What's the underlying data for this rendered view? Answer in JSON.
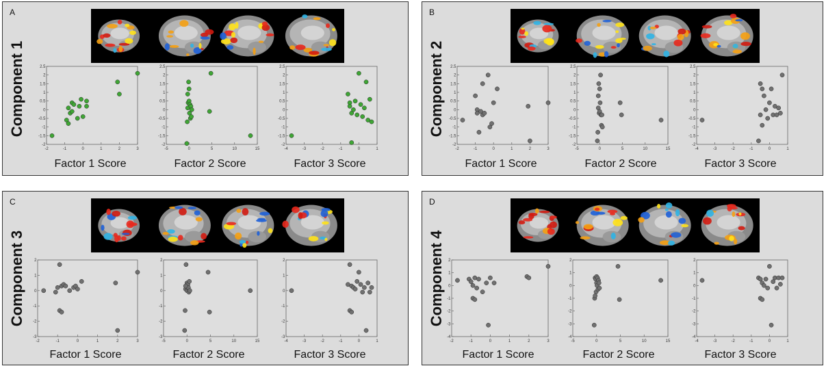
{
  "colors": {
    "panel_bg": "#dcdcdc",
    "green_point": "#3fa535",
    "gray_point": "#707070",
    "strip_bg": "#000000"
  },
  "chart_data": [
    {
      "id": "A",
      "type": "scatter",
      "component_label": "Component 1",
      "point_color": "#3fa535",
      "subplots": [
        {
          "xlabel": "Factor 1 Score",
          "xlim": [
            -2,
            3
          ],
          "ylim": [
            -2,
            2.5
          ],
          "xticks": [
            "-2",
            "-1",
            "0",
            "1",
            "2",
            "3"
          ],
          "yticks": [
            "-2",
            "-1.5",
            "-1",
            "-0.5",
            "0",
            "0.5",
            "1",
            "1.5",
            "2",
            "2.5"
          ],
          "x": [
            -1.7,
            -0.9,
            -0.8,
            -0.8,
            -0.7,
            -0.6,
            -0.6,
            -0.5,
            -0.3,
            -0.2,
            -0.1,
            0.0,
            0.2,
            0.2,
            1.9,
            2.0,
            3.0
          ],
          "y": [
            -1.5,
            -0.6,
            -0.8,
            0.1,
            -0.2,
            0.4,
            -0.1,
            0.3,
            -0.5,
            0.2,
            0.6,
            -0.4,
            0.2,
            0.5,
            1.6,
            0.9,
            2.1
          ]
        },
        {
          "xlabel": "Factor 2 Score",
          "xlim": [
            -5,
            15
          ],
          "ylim": [
            -2,
            2.5
          ],
          "xticks": [
            "-5",
            "0",
            "5",
            "10",
            "15"
          ],
          "yticks": [
            "-2",
            "-1.5",
            "-1",
            "-0.5",
            "0",
            "0.5",
            "1",
            "1.5",
            "2",
            "2.5"
          ],
          "x": [
            -0.5,
            -0.4,
            -0.3,
            -0.2,
            -0.1,
            0.0,
            0.0,
            0.1,
            0.2,
            0.3,
            0.4,
            0.5,
            0.6,
            4.5,
            4.8,
            13.5,
            -0.3
          ],
          "y": [
            -1.95,
            -0.7,
            0.1,
            0.4,
            1.6,
            1.2,
            0.5,
            -0.2,
            0.3,
            -0.5,
            0.2,
            -0.4,
            0.0,
            -0.1,
            2.1,
            -1.5,
            0.9
          ]
        },
        {
          "xlabel": "Factor 3 Score",
          "xlim": [
            -4,
            1
          ],
          "ylim": [
            -2,
            2.5
          ],
          "xticks": [
            "-4",
            "-3",
            "-2",
            "-1",
            "0",
            "1"
          ],
          "yticks": [
            "-2",
            "-1.5",
            "-1",
            "-0.5",
            "0",
            "0.5",
            "1",
            "1.5",
            "2",
            "2.5"
          ],
          "x": [
            -3.7,
            -0.6,
            -0.5,
            -0.5,
            -0.4,
            -0.4,
            -0.3,
            -0.2,
            -0.1,
            0.0,
            0.1,
            0.2,
            0.3,
            0.4,
            0.5,
            0.6,
            0.7
          ],
          "y": [
            -1.5,
            0.9,
            0.4,
            0.2,
            -0.2,
            -1.9,
            0.0,
            0.5,
            -0.3,
            2.1,
            0.3,
            -0.4,
            0.1,
            1.6,
            -0.6,
            0.6,
            -0.7
          ]
        }
      ]
    },
    {
      "id": "B",
      "type": "scatter",
      "component_label": "Component 2",
      "point_color": "#707070",
      "subplots": [
        {
          "xlabel": "Factor 1 Score",
          "xlim": [
            -2,
            3
          ],
          "ylim": [
            -2,
            2.5
          ],
          "xticks": [
            "-2",
            "-1",
            "0",
            "1",
            "2",
            "3"
          ],
          "yticks": [
            "-2",
            "-1.5",
            "-1",
            "-0.5",
            "0",
            "0.5",
            "1",
            "1.5",
            "2",
            "2.5"
          ],
          "x": [
            -1.7,
            -0.9,
            -0.9,
            -0.8,
            -0.7,
            -0.6,
            -0.6,
            -0.5,
            -0.3,
            -0.2,
            -0.1,
            0.0,
            0.2,
            1.9,
            2.0,
            3.0,
            -1.0
          ],
          "y": [
            -0.6,
            0.0,
            -0.2,
            -1.3,
            -0.1,
            -0.3,
            1.5,
            -0.2,
            2.0,
            -1.0,
            -0.8,
            0.4,
            1.2,
            0.2,
            -1.8,
            0.4,
            0.8
          ]
        },
        {
          "xlabel": "Factor 2 Score",
          "xlim": [
            -5,
            15
          ],
          "ylim": [
            -2,
            2.5
          ],
          "xticks": [
            "-5",
            "0",
            "5",
            "10",
            "15"
          ],
          "yticks": [
            "-2",
            "-1.5",
            "-1",
            "-0.5",
            "0",
            "0.5",
            "1",
            "1.5",
            "2",
            "2.5"
          ],
          "x": [
            -0.5,
            -0.4,
            -0.3,
            -0.2,
            -0.1,
            0.0,
            0.0,
            0.1,
            0.2,
            0.3,
            0.4,
            0.5,
            0.6,
            4.5,
            4.8,
            13.5,
            -0.3
          ],
          "y": [
            -1.8,
            -1.3,
            0.1,
            1.5,
            -0.2,
            1.2,
            -0.1,
            0.4,
            2.0,
            -0.3,
            -0.9,
            -0.3,
            -1.0,
            0.4,
            -0.3,
            -0.6,
            0.8
          ]
        },
        {
          "xlabel": "Factor 3 Score",
          "xlim": [
            -4,
            1
          ],
          "ylim": [
            -2,
            2.5
          ],
          "xticks": [
            "-4",
            "-3",
            "-2",
            "-1",
            "0",
            "1"
          ],
          "yticks": [
            "-2",
            "-1.5",
            "-1",
            "-0.5",
            "0",
            "0.5",
            "1",
            "1.5",
            "2",
            "2.5"
          ],
          "x": [
            -3.7,
            -0.6,
            -0.5,
            -0.5,
            -0.4,
            -0.4,
            -0.3,
            -0.2,
            -0.1,
            0.0,
            0.1,
            0.2,
            0.3,
            0.4,
            0.5,
            0.6,
            0.7
          ],
          "y": [
            -0.6,
            -1.8,
            1.5,
            -0.3,
            1.2,
            -0.9,
            0.8,
            0.0,
            -0.5,
            0.4,
            1.2,
            -0.3,
            0.2,
            -0.3,
            0.1,
            -0.2,
            2.0
          ]
        }
      ]
    },
    {
      "id": "C",
      "type": "scatter",
      "component_label": "Component 3",
      "point_color": "#707070",
      "subplots": [
        {
          "xlabel": "Factor 1 Score",
          "xlim": [
            -2,
            3
          ],
          "ylim": [
            -3,
            2
          ],
          "xticks": [
            "-2",
            "-1",
            "0",
            "1",
            "2",
            "3"
          ],
          "yticks": [
            "-3",
            "-2",
            "-1",
            "0",
            "1",
            "2"
          ],
          "x": [
            -1.7,
            -1.1,
            -1.0,
            -0.9,
            -0.9,
            -0.8,
            -0.8,
            -0.7,
            -0.6,
            -0.4,
            -0.2,
            -0.1,
            0.0,
            0.2,
            1.9,
            2.0,
            3.0
          ],
          "y": [
            0.0,
            -0.1,
            0.2,
            -1.3,
            1.7,
            0.3,
            -1.4,
            0.4,
            0.3,
            0.0,
            0.2,
            0.3,
            0.1,
            0.6,
            0.5,
            -2.6,
            1.2
          ]
        },
        {
          "xlabel": "Factor 2 Score",
          "xlim": [
            -5,
            15
          ],
          "ylim": [
            -3,
            2
          ],
          "xticks": [
            "-5",
            "0",
            "5",
            "10",
            "15"
          ],
          "yticks": [
            "-3",
            "-2",
            "-1",
            "0",
            "1",
            "2"
          ],
          "x": [
            -0.5,
            -0.4,
            -0.3,
            -0.2,
            -0.1,
            0.0,
            0.0,
            0.1,
            0.2,
            0.3,
            0.4,
            0.5,
            0.6,
            4.5,
            4.8,
            13.5,
            -0.3
          ],
          "y": [
            -2.6,
            -1.3,
            0.1,
            1.7,
            0.3,
            0.0,
            0.5,
            0.2,
            0.4,
            0.2,
            -0.1,
            0.6,
            0.0,
            1.2,
            -1.4,
            0.0,
            0.3
          ]
        },
        {
          "xlabel": "Factor 3 Score",
          "xlim": [
            -4,
            1
          ],
          "ylim": [
            -3,
            2
          ],
          "xticks": [
            "-4",
            "-3",
            "-2",
            "-1",
            "0",
            "1"
          ],
          "yticks": [
            "-3",
            "-2",
            "-1",
            "0",
            "1",
            "2"
          ],
          "x": [
            -3.7,
            -0.6,
            -0.5,
            -0.5,
            -0.4,
            -0.4,
            -0.3,
            -0.2,
            -0.1,
            0.0,
            0.1,
            0.2,
            0.3,
            0.4,
            0.5,
            0.6,
            0.7
          ],
          "y": [
            0.0,
            0.4,
            1.7,
            -1.3,
            0.3,
            -1.4,
            0.2,
            0.1,
            0.6,
            1.2,
            0.4,
            -0.1,
            0.2,
            -2.6,
            0.5,
            -0.1,
            0.2
          ]
        }
      ]
    },
    {
      "id": "D",
      "type": "scatter",
      "component_label": "Component 4",
      "point_color": "#707070",
      "subplots": [
        {
          "xlabel": "Factor 1 Score",
          "xlim": [
            -2,
            3
          ],
          "ylim": [
            -4,
            2
          ],
          "xticks": [
            "-2",
            "-1",
            "0",
            "1",
            "2",
            "3"
          ],
          "yticks": [
            "-4",
            "-3",
            "-2",
            "-1",
            "0",
            "1",
            "2"
          ],
          "x": [
            -1.7,
            -1.1,
            -1.0,
            -0.9,
            -0.9,
            -0.8,
            -0.8,
            -0.7,
            -0.6,
            -0.4,
            -0.2,
            -0.1,
            0.0,
            0.2,
            1.9,
            2.0,
            3.0
          ],
          "y": [
            0.4,
            0.5,
            0.3,
            -1.0,
            0.0,
            0.6,
            -1.1,
            -0.2,
            0.5,
            -0.5,
            0.2,
            -3.1,
            0.6,
            0.2,
            0.7,
            0.6,
            1.5
          ]
        },
        {
          "xlabel": "Factor 2 Score",
          "xlim": [
            -5,
            15
          ],
          "ylim": [
            -4,
            2
          ],
          "xticks": [
            "-5",
            "0",
            "5",
            "10",
            "15"
          ],
          "yticks": [
            "-4",
            "-3",
            "-2",
            "-1",
            "0",
            "1",
            "2"
          ],
          "x": [
            -0.5,
            -0.4,
            -0.3,
            -0.2,
            -0.1,
            0.0,
            0.0,
            0.1,
            0.2,
            0.3,
            0.4,
            0.5,
            0.6,
            4.5,
            4.8,
            13.5,
            -0.3
          ],
          "y": [
            -3.1,
            -1.0,
            0.6,
            0.5,
            -0.5,
            0.7,
            0.2,
            0.0,
            0.6,
            -0.3,
            0.4,
            0.2,
            -0.2,
            1.5,
            -1.1,
            0.4,
            -0.8
          ]
        },
        {
          "xlabel": "Factor 3 Score",
          "xlim": [
            -4,
            1
          ],
          "ylim": [
            -4,
            2
          ],
          "xticks": [
            "-4",
            "-3",
            "-2",
            "-1",
            "0",
            "1"
          ],
          "yticks": [
            "-4",
            "-3",
            "-2",
            "-1",
            "0",
            "1",
            "2"
          ],
          "x": [
            -3.7,
            -0.6,
            -0.5,
            -0.5,
            -0.4,
            -0.4,
            -0.3,
            -0.2,
            -0.1,
            0.0,
            0.1,
            0.2,
            0.3,
            0.4,
            0.5,
            0.6,
            0.7
          ],
          "y": [
            0.4,
            0.6,
            -1.0,
            0.5,
            -1.1,
            0.2,
            0.0,
            0.5,
            -0.2,
            1.5,
            -3.1,
            0.3,
            0.6,
            -0.2,
            0.6,
            0.1,
            0.6
          ]
        }
      ]
    }
  ]
}
